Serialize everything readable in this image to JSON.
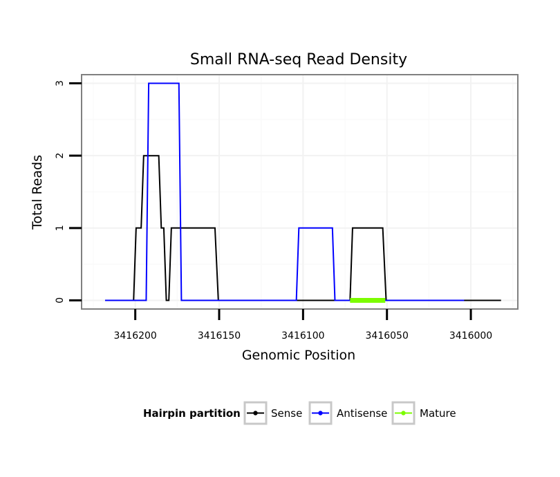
{
  "chart_data": {
    "type": "line",
    "title": "Small RNA-seq Read Density",
    "xlabel": "Genomic Position",
    "ylabel": "Total Reads",
    "x_reversed": true,
    "xlim": [
      3416232,
      3415972
    ],
    "ylim": [
      -0.12,
      3.12
    ],
    "x_ticks": [
      3416200,
      3416150,
      3416100,
      3416050,
      3416000
    ],
    "x_tick_labels": [
      "3416200",
      "3416150",
      "3416100",
      "3416050",
      "3416000"
    ],
    "y_ticks": [
      0,
      1,
      2,
      3
    ],
    "y_tick_labels": [
      "0",
      "1",
      "2",
      "3"
    ],
    "grid": true,
    "legend": {
      "title": "Hairpin partition",
      "position": "bottom",
      "entries": [
        "Sense",
        "Antisense",
        "Mature"
      ]
    },
    "series": [
      {
        "name": "Sense",
        "color": "#000000",
        "x": [
          3416218,
          3416201,
          3416199.5,
          3416196.5,
          3416195,
          3416186,
          3416184.5,
          3416183,
          3416181.5,
          3416180,
          3416178.5,
          3416172.5,
          3416170.5,
          3416152.5,
          3416150.5,
          3416072,
          3416070.5,
          3416052.5,
          3416050.5,
          3415982
        ],
        "y": [
          0,
          0,
          1,
          1,
          2,
          2,
          1,
          1,
          0,
          0,
          1,
          1,
          1,
          1,
          0,
          0,
          1,
          1,
          0,
          0
        ]
      },
      {
        "name": "Antisense",
        "color": "#0000ff",
        "x": [
          3416218,
          3416193.5,
          3416192,
          3416174,
          3416172.5,
          3416104,
          3416102.5,
          3416082.5,
          3416081,
          3416004
        ],
        "y": [
          0,
          0,
          3,
          3,
          0,
          0,
          1,
          1,
          0,
          0
        ]
      },
      {
        "name": "Mature",
        "color": "#7cfc00",
        "x": [
          3416072,
          3416051
        ],
        "y": [
          0,
          0
        ]
      }
    ]
  }
}
